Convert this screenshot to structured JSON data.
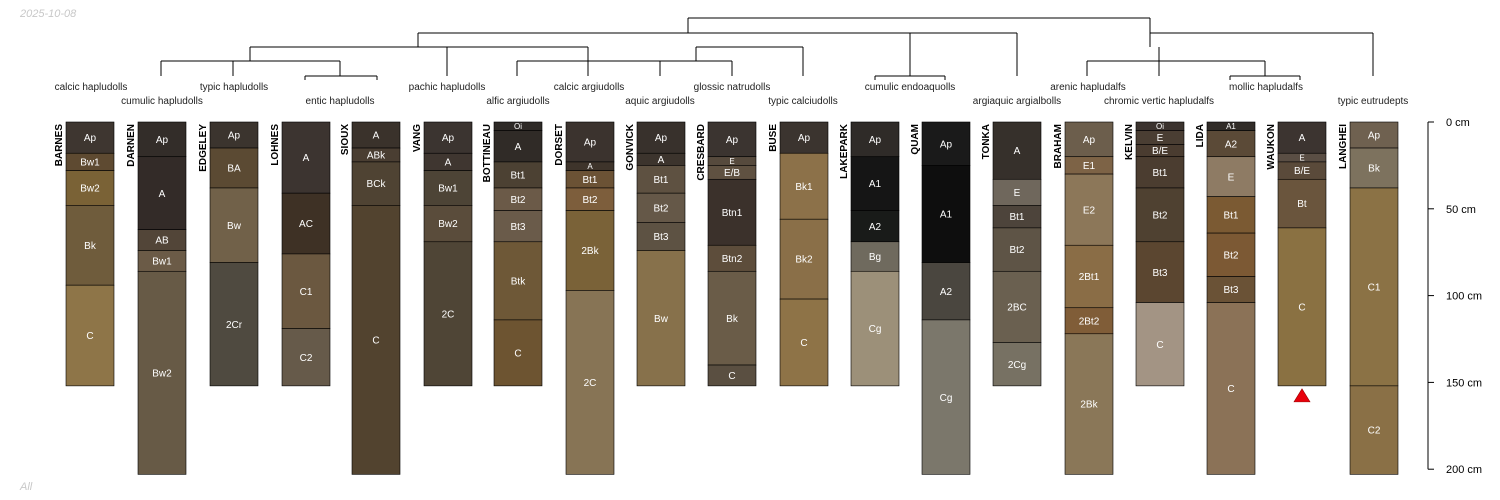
{
  "date_label": "2025-10-08",
  "subset_label": "All",
  "depth_axis": {
    "ticks": [
      0,
      50,
      100,
      150,
      200
    ],
    "unit": "cm"
  },
  "profiles": [
    {
      "name": "BARNES",
      "taxon": "calcic hapludolls",
      "bottom_arrow": false,
      "horizons": [
        {
          "name": "Ap",
          "top": 0,
          "bottom": 18,
          "color": "#3e3630"
        },
        {
          "name": "Bw1",
          "top": 18,
          "bottom": 28,
          "color": "#5e4a31"
        },
        {
          "name": "Bw2",
          "top": 28,
          "bottom": 48,
          "color": "#7a6236"
        },
        {
          "name": "Bk",
          "top": 48,
          "bottom": 94,
          "color": "#6f5c3c"
        },
        {
          "name": "C",
          "top": 94,
          "bottom": 152,
          "color": "#8e7548"
        }
      ]
    },
    {
      "name": "DARNEN",
      "taxon": "cumulic hapludolls",
      "bottom_arrow": false,
      "horizons": [
        {
          "name": "Ap",
          "top": 0,
          "bottom": 20,
          "color": "#332d29"
        },
        {
          "name": "A",
          "top": 20,
          "bottom": 62,
          "color": "#332b28"
        },
        {
          "name": "AB",
          "top": 62,
          "bottom": 74,
          "color": "#524538"
        },
        {
          "name": "Bw1",
          "top": 74,
          "bottom": 86,
          "color": "#6b5b47"
        },
        {
          "name": "Bw2",
          "top": 86,
          "bottom": 203,
          "color": "#675a46"
        }
      ]
    },
    {
      "name": "EDGELEY",
      "taxon": "typic hapludolls",
      "bottom_arrow": false,
      "horizons": [
        {
          "name": "Ap",
          "top": 0,
          "bottom": 15,
          "color": "#3b342e"
        },
        {
          "name": "BA",
          "top": 15,
          "bottom": 38,
          "color": "#5b4a33"
        },
        {
          "name": "Bw",
          "top": 38,
          "bottom": 81,
          "color": "#716149"
        },
        {
          "name": "2Cr",
          "top": 81,
          "bottom": 152,
          "color": "#4f4a40"
        }
      ]
    },
    {
      "name": "LOHNES",
      "taxon": "entic hapludolls",
      "bottom_arrow": false,
      "horizons": [
        {
          "name": "A",
          "top": 0,
          "bottom": 41,
          "color": "#3c3430"
        },
        {
          "name": "AC",
          "top": 41,
          "bottom": 76,
          "color": "#3e3125"
        },
        {
          "name": "C1",
          "top": 76,
          "bottom": 119,
          "color": "#6b5840"
        },
        {
          "name": "C2",
          "top": 119,
          "bottom": 152,
          "color": "#665a4a"
        }
      ]
    },
    {
      "name": "SIOUX",
      "taxon": "entic hapludolls",
      "bottom_arrow": false,
      "horizons": [
        {
          "name": "A",
          "top": 0,
          "bottom": 15,
          "color": "#3a322b"
        },
        {
          "name": "ABk",
          "top": 15,
          "bottom": 23,
          "color": "#4a3e32"
        },
        {
          "name": "BCk",
          "top": 23,
          "bottom": 48,
          "color": "#4f4333"
        },
        {
          "name": "C",
          "top": 48,
          "bottom": 203,
          "color": "#52432f"
        }
      ]
    },
    {
      "name": "VANG",
      "taxon": "pachic hapludolls",
      "bottom_arrow": false,
      "horizons": [
        {
          "name": "Ap",
          "top": 0,
          "bottom": 18,
          "color": "#3b3430"
        },
        {
          "name": "A",
          "top": 18,
          "bottom": 28,
          "color": "#3f3630"
        },
        {
          "name": "Bw1",
          "top": 28,
          "bottom": 48,
          "color": "#4d4436"
        },
        {
          "name": "Bw2",
          "top": 48,
          "bottom": 69,
          "color": "#5a4c3b"
        },
        {
          "name": "2C",
          "top": 69,
          "bottom": 152,
          "color": "#4f4536"
        }
      ]
    },
    {
      "name": "BOTTINEAU",
      "taxon": "alfic argiudolls",
      "bottom_arrow": false,
      "horizons": [
        {
          "name": "Oi",
          "top": 0,
          "bottom": 5,
          "color": "#2e2a27"
        },
        {
          "name": "A",
          "top": 5,
          "bottom": 23,
          "color": "#302b27"
        },
        {
          "name": "Bt1",
          "top": 23,
          "bottom": 38,
          "color": "#4c4133"
        },
        {
          "name": "Bt2",
          "top": 38,
          "bottom": 51,
          "color": "#6b5a48"
        },
        {
          "name": "Bt3",
          "top": 51,
          "bottom": 69,
          "color": "#6a5b4a"
        },
        {
          "name": "Btk",
          "top": 69,
          "bottom": 114,
          "color": "#6e5837"
        },
        {
          "name": "C",
          "top": 114,
          "bottom": 152,
          "color": "#6d5431"
        }
      ]
    },
    {
      "name": "DORSET",
      "taxon": "calcic argiudolls",
      "bottom_arrow": false,
      "horizons": [
        {
          "name": "Ap",
          "top": 0,
          "bottom": 23,
          "color": "#3b332e"
        },
        {
          "name": "A",
          "top": 23,
          "bottom": 28,
          "color": "#3e342b"
        },
        {
          "name": "Bt1",
          "top": 28,
          "bottom": 38,
          "color": "#6b5235"
        },
        {
          "name": "Bt2",
          "top": 38,
          "bottom": 51,
          "color": "#7d5e3c"
        },
        {
          "name": "2Bk",
          "top": 51,
          "bottom": 97,
          "color": "#7a6238"
        },
        {
          "name": "2C",
          "top": 97,
          "bottom": 203,
          "color": "#877455"
        }
      ]
    },
    {
      "name": "GONVICK",
      "taxon": "aquic argiudolls",
      "bottom_arrow": false,
      "horizons": [
        {
          "name": "Ap",
          "top": 0,
          "bottom": 18,
          "color": "#38312c"
        },
        {
          "name": "A",
          "top": 18,
          "bottom": 25,
          "color": "#3c342d"
        },
        {
          "name": "Bt1",
          "top": 25,
          "bottom": 41,
          "color": "#5e5141"
        },
        {
          "name": "Bt2",
          "top": 41,
          "bottom": 58,
          "color": "#655848"
        },
        {
          "name": "Bt3",
          "top": 58,
          "bottom": 74,
          "color": "#5d5243"
        },
        {
          "name": "Bw",
          "top": 74,
          "bottom": 152,
          "color": "#87714b"
        }
      ]
    },
    {
      "name": "CRESBARD",
      "taxon": "glossic natrudolls",
      "bottom_arrow": false,
      "horizons": [
        {
          "name": "Ap",
          "top": 0,
          "bottom": 20,
          "color": "#3b3430"
        },
        {
          "name": "E",
          "top": 20,
          "bottom": 25,
          "color": "#564a3d"
        },
        {
          "name": "E/B",
          "top": 25,
          "bottom": 33,
          "color": "#5f5141"
        },
        {
          "name": "Btn1",
          "top": 33,
          "bottom": 71,
          "color": "#3b312b"
        },
        {
          "name": "Btn2",
          "top": 71,
          "bottom": 86,
          "color": "#5d4d3b"
        },
        {
          "name": "Bk",
          "top": 86,
          "bottom": 140,
          "color": "#6a5c48"
        },
        {
          "name": "C",
          "top": 140,
          "bottom": 152,
          "color": "#5a4f41"
        }
      ]
    },
    {
      "name": "BUSE",
      "taxon": "typic calciudolls",
      "bottom_arrow": false,
      "horizons": [
        {
          "name": "Ap",
          "top": 0,
          "bottom": 18,
          "color": "#3b342f"
        },
        {
          "name": "Bk1",
          "top": 18,
          "bottom": 56,
          "color": "#8c7149"
        },
        {
          "name": "Bk2",
          "top": 56,
          "bottom": 102,
          "color": "#8a6f48"
        },
        {
          "name": "C",
          "top": 102,
          "bottom": 152,
          "color": "#8e7347"
        }
      ]
    },
    {
      "name": "LAKEPARK",
      "taxon": "cumulic endoaquolls",
      "bottom_arrow": false,
      "horizons": [
        {
          "name": "Ap",
          "top": 0,
          "bottom": 20,
          "color": "#2f2b28"
        },
        {
          "name": "A1",
          "top": 20,
          "bottom": 51,
          "color": "#151515"
        },
        {
          "name": "A2",
          "top": 51,
          "bottom": 69,
          "color": "#191b19"
        },
        {
          "name": "Bg",
          "top": 69,
          "bottom": 86,
          "color": "#6f6a5e"
        },
        {
          "name": "Cg",
          "top": 86,
          "bottom": 152,
          "color": "#9c9079"
        }
      ]
    },
    {
      "name": "QUAM",
      "taxon": "cumulic endoaquolls",
      "bottom_arrow": false,
      "horizons": [
        {
          "name": "Ap",
          "top": 0,
          "bottom": 25,
          "color": "#1a1a1a"
        },
        {
          "name": "A1",
          "top": 25,
          "bottom": 81,
          "color": "#0e0e0e"
        },
        {
          "name": "A2",
          "top": 81,
          "bottom": 114,
          "color": "#4a463f"
        },
        {
          "name": "Cg",
          "top": 114,
          "bottom": 203,
          "color": "#7b776b"
        }
      ]
    },
    {
      "name": "TONKA",
      "taxon": "argiaquic argialbolls",
      "bottom_arrow": false,
      "horizons": [
        {
          "name": "A",
          "top": 0,
          "bottom": 33,
          "color": "#36302b"
        },
        {
          "name": "E",
          "top": 33,
          "bottom": 48,
          "color": "#6f675c"
        },
        {
          "name": "Bt1",
          "top": 48,
          "bottom": 61,
          "color": "#4d443b"
        },
        {
          "name": "Bt2",
          "top": 61,
          "bottom": 86,
          "color": "#5e5446"
        },
        {
          "name": "2BC",
          "top": 86,
          "bottom": 127,
          "color": "#6a6050"
        },
        {
          "name": "2Cg",
          "top": 127,
          "bottom": 152,
          "color": "#777163"
        }
      ]
    },
    {
      "name": "BRAHAM",
      "taxon": "arenic hapludalfs",
      "bottom_arrow": false,
      "horizons": [
        {
          "name": "Ap",
          "top": 0,
          "bottom": 20,
          "color": "#6c5e4c"
        },
        {
          "name": "E1",
          "top": 20,
          "bottom": 30,
          "color": "#7d6346"
        },
        {
          "name": "E2",
          "top": 30,
          "bottom": 71,
          "color": "#8c7759"
        },
        {
          "name": "2Bt1",
          "top": 71,
          "bottom": 107,
          "color": "#8a6d46"
        },
        {
          "name": "2Bt2",
          "top": 107,
          "bottom": 122,
          "color": "#805d38"
        },
        {
          "name": "2Bk",
          "top": 122,
          "bottom": 203,
          "color": "#8a7758"
        }
      ]
    },
    {
      "name": "KELVIN",
      "taxon": "chromic vertic hapludalfs",
      "bottom_arrow": false,
      "horizons": [
        {
          "name": "Oi",
          "top": 0,
          "bottom": 5,
          "color": "#3b332e"
        },
        {
          "name": "E",
          "top": 5,
          "bottom": 13,
          "color": "#4a3e33"
        },
        {
          "name": "B/E",
          "top": 13,
          "bottom": 20,
          "color": "#4a3c30"
        },
        {
          "name": "Bt1",
          "top": 20,
          "bottom": 38,
          "color": "#4b3d30"
        },
        {
          "name": "Bt2",
          "top": 38,
          "bottom": 69,
          "color": "#4f4131"
        },
        {
          "name": "Bt3",
          "top": 69,
          "bottom": 104,
          "color": "#5b4630"
        },
        {
          "name": "C",
          "top": 104,
          "bottom": 152,
          "color": "#a39484"
        }
      ]
    },
    {
      "name": "LIDA",
      "taxon": "mollic hapludalfs",
      "bottom_arrow": false,
      "horizons": [
        {
          "name": "A1",
          "top": 0,
          "bottom": 5,
          "color": "#312c28"
        },
        {
          "name": "A2",
          "top": 5,
          "bottom": 20,
          "color": "#5b4a37"
        },
        {
          "name": "E",
          "top": 20,
          "bottom": 43,
          "color": "#8e7b64"
        },
        {
          "name": "Bt1",
          "top": 43,
          "bottom": 64,
          "color": "#7b5a33"
        },
        {
          "name": "Bt2",
          "top": 64,
          "bottom": 89,
          "color": "#7c5934"
        },
        {
          "name": "Bt3",
          "top": 89,
          "bottom": 104,
          "color": "#6a5236"
        },
        {
          "name": "C",
          "top": 104,
          "bottom": 203,
          "color": "#8b7257"
        }
      ]
    },
    {
      "name": "WAUKON",
      "taxon": "mollic hapludalfs",
      "bottom_arrow": true,
      "horizons": [
        {
          "name": "A",
          "top": 0,
          "bottom": 18,
          "color": "#3c3430"
        },
        {
          "name": "E",
          "top": 18,
          "bottom": 23,
          "color": "#5a4e44"
        },
        {
          "name": "B/E",
          "top": 23,
          "bottom": 33,
          "color": "#5a4a3a"
        },
        {
          "name": "Bt",
          "top": 33,
          "bottom": 61,
          "color": "#6a553d"
        },
        {
          "name": "C",
          "top": 61,
          "bottom": 152,
          "color": "#8a7142"
        }
      ]
    },
    {
      "name": "LANGHEI",
      "taxon": "typic eutrudepts",
      "bottom_arrow": false,
      "horizons": [
        {
          "name": "Ap",
          "top": 0,
          "bottom": 15,
          "color": "#6f6150"
        },
        {
          "name": "Bk",
          "top": 15,
          "bottom": 38,
          "color": "#7d725e"
        },
        {
          "name": "C1",
          "top": 38,
          "bottom": 152,
          "color": "#8b7245"
        },
        {
          "name": "C2",
          "top": 152,
          "bottom": 203,
          "color": "#8a7046"
        }
      ]
    }
  ]
}
